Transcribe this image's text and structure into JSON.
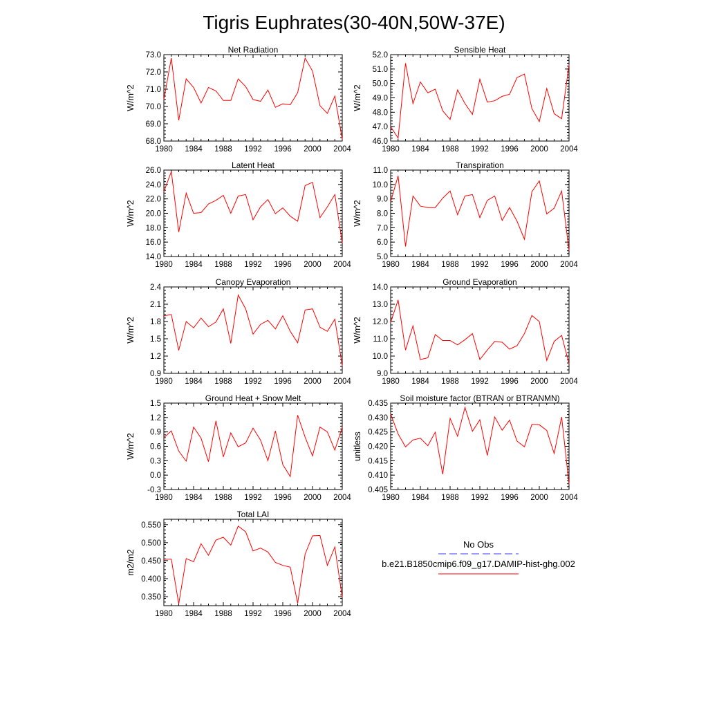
{
  "figure": {
    "title": "Tigris Euphrates(30-40N,50W-37E)",
    "line_color": "#ff0000"
  },
  "legend": {
    "obs_label": "No Obs",
    "obs_color": "#3a3aff",
    "model_label": "b.e21.B1850cmip6.f09_g17.DAMIP-hist-ghg.002",
    "model_color": "#ff0000"
  },
  "chart_data": [
    {
      "type": "line",
      "title": "Net Radiation",
      "ylabel": "W/m^2",
      "x": [
        1980,
        1981,
        1982,
        1983,
        1984,
        1985,
        1986,
        1987,
        1988,
        1989,
        1990,
        1991,
        1992,
        1993,
        1994,
        1995,
        1996,
        1997,
        1998,
        1999,
        2000,
        2001,
        2002,
        2003,
        2004
      ],
      "values": [
        70.4,
        72.8,
        69.2,
        71.6,
        71.1,
        70.2,
        71.1,
        70.9,
        70.35,
        70.35,
        71.6,
        71.15,
        70.4,
        70.3,
        70.95,
        69.95,
        70.15,
        70.1,
        70.8,
        72.8,
        72.05,
        70.05,
        69.6,
        70.6,
        68.1
      ],
      "xlim": [
        1980,
        2004
      ],
      "xticks": [
        "1980",
        "1984",
        "1988",
        "1992",
        "1996",
        "2000",
        "2004"
      ],
      "ylim": [
        68.0,
        73.0
      ],
      "yticks": [
        "68.0",
        "69.0",
        "70.0",
        "71.0",
        "72.0",
        "73.0"
      ]
    },
    {
      "type": "line",
      "title": "Sensible Heat",
      "ylabel": "W/m^2",
      "x": [
        1980,
        1981,
        1982,
        1983,
        1984,
        1985,
        1986,
        1987,
        1988,
        1989,
        1990,
        1991,
        1992,
        1993,
        1994,
        1995,
        1996,
        1997,
        1998,
        1999,
        2000,
        2001,
        2002,
        2003,
        2004
      ],
      "values": [
        47.0,
        46.2,
        51.4,
        48.6,
        50.1,
        49.35,
        49.6,
        48.1,
        47.5,
        49.55,
        48.6,
        47.85,
        50.3,
        48.7,
        48.8,
        49.1,
        49.25,
        50.4,
        50.65,
        48.25,
        47.35,
        49.65,
        47.9,
        47.55,
        51.3
      ],
      "xlim": [
        1980,
        2004
      ],
      "xticks": [
        "1980",
        "1984",
        "1988",
        "1992",
        "1996",
        "2000",
        "2004"
      ],
      "ylim": [
        46.0,
        52.0
      ],
      "yticks": [
        "46.0",
        "47.0",
        "48.0",
        "49.0",
        "50.0",
        "51.0",
        "52.0"
      ]
    },
    {
      "type": "line",
      "title": "Latent Heat",
      "ylabel": "W/m^2",
      "x": [
        1980,
        1981,
        1982,
        1983,
        1984,
        1985,
        1986,
        1987,
        1988,
        1989,
        1990,
        1991,
        1992,
        1993,
        1994,
        1995,
        1996,
        1997,
        1998,
        1999,
        2000,
        2001,
        2002,
        2003,
        2004
      ],
      "values": [
        23.0,
        25.8,
        17.4,
        22.8,
        20.0,
        20.1,
        21.3,
        21.8,
        22.5,
        20.0,
        22.4,
        22.6,
        19.1,
        20.9,
        21.9,
        19.95,
        20.75,
        19.6,
        18.9,
        23.85,
        24.3,
        19.4,
        20.9,
        22.6,
        15.9
      ],
      "xlim": [
        1980,
        2004
      ],
      "xticks": [
        "1980",
        "1984",
        "1988",
        "1992",
        "1996",
        "2000",
        "2004"
      ],
      "ylim": [
        14.0,
        26.0
      ],
      "yticks": [
        "14.0",
        "16.0",
        "18.0",
        "20.0",
        "22.0",
        "24.0",
        "26.0"
      ]
    },
    {
      "type": "line",
      "title": "Transpiration",
      "ylabel": "W/m^2",
      "x": [
        1980,
        1981,
        1982,
        1983,
        1984,
        1985,
        1986,
        1987,
        1988,
        1989,
        1990,
        1991,
        1992,
        1993,
        1994,
        1995,
        1996,
        1997,
        1998,
        1999,
        2000,
        2001,
        2002,
        2003,
        2004
      ],
      "values": [
        8.8,
        10.6,
        5.7,
        9.2,
        8.5,
        8.4,
        8.4,
        9.05,
        9.55,
        7.9,
        9.2,
        9.3,
        7.7,
        8.9,
        9.2,
        7.5,
        8.4,
        7.45,
        6.2,
        9.5,
        10.25,
        7.95,
        8.35,
        9.55,
        5.4
      ],
      "xlim": [
        1980,
        2004
      ],
      "xticks": [
        "1980",
        "1984",
        "1988",
        "1992",
        "1996",
        "2000",
        "2004"
      ],
      "ylim": [
        5.0,
        11.0
      ],
      "yticks": [
        "5.0",
        "6.0",
        "7.0",
        "8.0",
        "9.0",
        "10.0",
        "11.0"
      ]
    },
    {
      "type": "line",
      "title": "Canopy Evaporation",
      "ylabel": "W/m^2",
      "x": [
        1980,
        1981,
        1982,
        1983,
        1984,
        1985,
        1986,
        1987,
        1988,
        1989,
        1990,
        1991,
        1992,
        1993,
        1994,
        1995,
        1996,
        1997,
        1998,
        1999,
        2000,
        2001,
        2002,
        2003,
        2004
      ],
      "values": [
        1.9,
        1.92,
        1.3,
        1.8,
        1.69,
        1.86,
        1.71,
        1.79,
        2.02,
        1.42,
        2.26,
        2.02,
        1.58,
        1.75,
        1.82,
        1.67,
        1.9,
        1.63,
        1.43,
        2.0,
        2.02,
        1.7,
        1.63,
        1.84,
        1.03
      ],
      "xlim": [
        1980,
        2004
      ],
      "xticks": [
        "1980",
        "1984",
        "1988",
        "1992",
        "1996",
        "2000",
        "2004"
      ],
      "ylim": [
        0.9,
        2.4
      ],
      "yticks": [
        "0.9",
        "1.2",
        "1.5",
        "1.8",
        "2.1",
        "2.4"
      ]
    },
    {
      "type": "line",
      "title": "Ground Evaporation",
      "ylabel": "W/m^2",
      "x": [
        1980,
        1981,
        1982,
        1983,
        1984,
        1985,
        1986,
        1987,
        1988,
        1989,
        1990,
        1991,
        1992,
        1993,
        1994,
        1995,
        1996,
        1997,
        1998,
        1999,
        2000,
        2001,
        2002,
        2003,
        2004
      ],
      "values": [
        11.95,
        13.25,
        10.35,
        11.75,
        9.8,
        9.9,
        11.25,
        10.9,
        10.9,
        10.65,
        10.95,
        11.3,
        9.8,
        10.35,
        10.85,
        10.8,
        10.4,
        10.6,
        11.3,
        12.35,
        12.0,
        9.75,
        10.85,
        11.2,
        9.55
      ],
      "xlim": [
        1980,
        2004
      ],
      "xticks": [
        "1980",
        "1984",
        "1988",
        "1992",
        "1996",
        "2000",
        "2004"
      ],
      "ylim": [
        9.0,
        14.0
      ],
      "yticks": [
        "9.0",
        "10.0",
        "11.0",
        "12.0",
        "13.0",
        "14.0"
      ]
    },
    {
      "type": "line",
      "title": "Ground Heat + Snow Melt",
      "ylabel": "W/m^2",
      "x": [
        1980,
        1981,
        1982,
        1983,
        1984,
        1985,
        1986,
        1987,
        1988,
        1989,
        1990,
        1991,
        1992,
        1993,
        1994,
        1995,
        1996,
        1997,
        1998,
        1999,
        2000,
        2001,
        2002,
        2003,
        2004
      ],
      "values": [
        0.78,
        0.92,
        0.5,
        0.29,
        1.0,
        0.77,
        0.28,
        1.13,
        0.38,
        0.88,
        0.59,
        0.67,
        0.98,
        0.73,
        0.3,
        0.92,
        0.22,
        -0.03,
        1.25,
        0.79,
        0.4,
        1.0,
        0.9,
        0.52,
        1.0
      ],
      "xlim": [
        1980,
        2004
      ],
      "xticks": [
        "1980",
        "1984",
        "1988",
        "1992",
        "1996",
        "2000",
        "2004"
      ],
      "ylim": [
        -0.3,
        1.5
      ],
      "yticks": [
        "-0.3",
        "0.0",
        "0.3",
        "0.6",
        "0.9",
        "1.2",
        "1.5"
      ]
    },
    {
      "type": "line",
      "title": "Soil moisture factor (BTRAN or BTRANMN)",
      "ylabel": "unitless",
      "x": [
        1980,
        1981,
        1982,
        1983,
        1984,
        1985,
        1986,
        1987,
        1988,
        1989,
        1990,
        1991,
        1992,
        1993,
        1994,
        1995,
        1996,
        1997,
        1998,
        1999,
        2000,
        2001,
        2002,
        2003,
        2004
      ],
      "values": [
        0.4312,
        0.4243,
        0.4198,
        0.4222,
        0.4228,
        0.4202,
        0.4249,
        0.4103,
        0.4297,
        0.4235,
        0.4335,
        0.4252,
        0.4292,
        0.4168,
        0.4302,
        0.4256,
        0.4291,
        0.4218,
        0.4198,
        0.4276,
        0.4275,
        0.4255,
        0.4175,
        0.4302,
        0.4068
      ],
      "xlim": [
        1980,
        2004
      ],
      "xticks": [
        "1980",
        "1984",
        "1988",
        "1992",
        "1996",
        "2000",
        "2004"
      ],
      "ylim": [
        0.405,
        0.435
      ],
      "yticks": [
        "0.405",
        "0.410",
        "0.415",
        "0.420",
        "0.425",
        "0.430",
        "0.435"
      ]
    },
    {
      "type": "line",
      "title": "Total LAI",
      "ylabel": "m2/m2",
      "x": [
        1980,
        1981,
        1982,
        1983,
        1984,
        1985,
        1986,
        1987,
        1988,
        1989,
        1990,
        1991,
        1992,
        1993,
        1994,
        1995,
        1996,
        1997,
        1998,
        1999,
        2000,
        2001,
        2002,
        2003,
        2004
      ],
      "values": [
        0.454,
        0.454,
        0.33,
        0.456,
        0.447,
        0.497,
        0.465,
        0.507,
        0.515,
        0.493,
        0.546,
        0.53,
        0.477,
        0.485,
        0.474,
        0.445,
        0.437,
        0.432,
        0.332,
        0.468,
        0.519,
        0.52,
        0.437,
        0.488,
        0.348
      ],
      "xlim": [
        1980,
        2004
      ],
      "xticks": [
        "1980",
        "1984",
        "1988",
        "1992",
        "1996",
        "2000",
        "2004"
      ],
      "ylim": [
        0.325,
        0.565
      ],
      "yticks": [
        "0.350",
        "0.400",
        "0.450",
        "0.500",
        "0.550"
      ]
    }
  ]
}
